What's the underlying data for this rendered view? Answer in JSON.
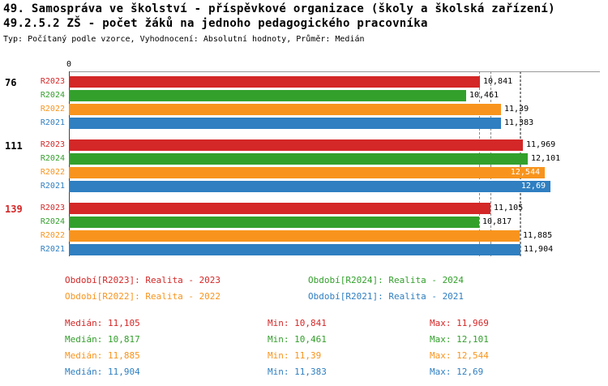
{
  "header": {
    "title_line1": "49. Samospráva ve školství - příspěvkové organizace (školy a školská zařízení)",
    "title_line2": "49.2.5.2 ZŠ - počet žáků na jednoho pedagogického pracovníka",
    "subtitle": "Typ: Počítaný podle vzorce, Vyhodnocení: Absolutní hodnoty, Průměr: Medián"
  },
  "colors": {
    "R2023": "#d42727",
    "R2024": "#33a02c",
    "R2022": "#f8941d",
    "R2021": "#2f7fc1",
    "group_highlight": "#d42727",
    "group_default": "#000000",
    "median_line": "#8a8a8a"
  },
  "chart_data": {
    "type": "bar",
    "orientation": "horizontal",
    "axis": {
      "min": 0,
      "max": 14,
      "tick_labels": [
        "0"
      ]
    },
    "series_order": [
      "R2023",
      "R2024",
      "R2022",
      "R2021"
    ],
    "groups": [
      {
        "label": "76",
        "highlight": false,
        "bars": [
          {
            "series": "R2023",
            "value": 10.841,
            "value_label": "10,841"
          },
          {
            "series": "R2024",
            "value": 10.461,
            "value_label": "10,461"
          },
          {
            "series": "R2022",
            "value": 11.39,
            "value_label": "11,39"
          },
          {
            "series": "R2021",
            "value": 11.383,
            "value_label": "11,383"
          }
        ]
      },
      {
        "label": "111",
        "highlight": false,
        "bars": [
          {
            "series": "R2023",
            "value": 11.969,
            "value_label": "11,969"
          },
          {
            "series": "R2024",
            "value": 12.101,
            "value_label": "12,101"
          },
          {
            "series": "R2022",
            "value": 12.544,
            "value_label": "12,544"
          },
          {
            "series": "R2021",
            "value": 12.69,
            "value_label": "12,69"
          }
        ]
      },
      {
        "label": "139",
        "highlight": true,
        "bars": [
          {
            "series": "R2023",
            "value": 11.105,
            "value_label": "11,105"
          },
          {
            "series": "R2024",
            "value": 10.817,
            "value_label": "10,817"
          },
          {
            "series": "R2022",
            "value": 11.885,
            "value_label": "11,885"
          },
          {
            "series": "R2021",
            "value": 11.904,
            "value_label": "11,904"
          }
        ]
      }
    ],
    "median_lines": [
      {
        "series": "R2023",
        "value": 11.105
      },
      {
        "series": "R2024",
        "value": 10.817
      },
      {
        "series": "R2022",
        "value": 11.885
      },
      {
        "series": "R2021",
        "value": 11.904
      }
    ]
  },
  "legend": [
    {
      "series": "R2023",
      "label": "Období[R2023]: Realita - 2023"
    },
    {
      "series": "R2024",
      "label": "Období[R2024]: Realita - 2024"
    },
    {
      "series": "R2022",
      "label": "Období[R2022]: Realita - 2022"
    },
    {
      "series": "R2021",
      "label": "Období[R2021]: Realita - 2021"
    }
  ],
  "stats": [
    {
      "series": "R2023",
      "median_text": "Medián: 11,105",
      "min_text": "Min: 10,841",
      "max_text": "Max: 11,969"
    },
    {
      "series": "R2024",
      "median_text": "Medián: 10,817",
      "min_text": "Min: 10,461",
      "max_text": "Max: 12,101"
    },
    {
      "series": "R2022",
      "median_text": "Medián: 11,885",
      "min_text": "Min: 11,39",
      "max_text": "Max: 12,544"
    },
    {
      "series": "R2021",
      "median_text": "Medián: 11,904",
      "min_text": "Min: 11,383",
      "max_text": "Max: 12,69"
    }
  ]
}
